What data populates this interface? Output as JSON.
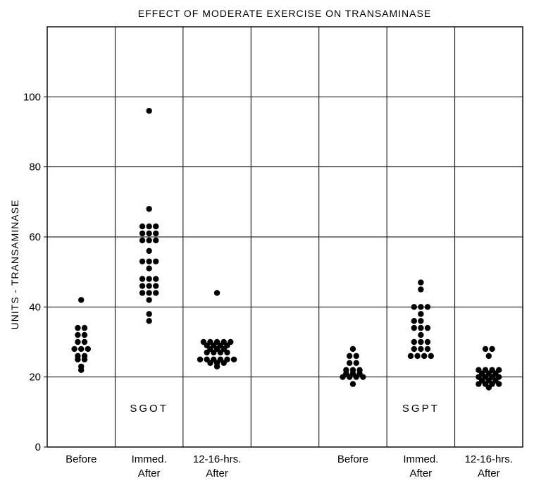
{
  "chart_data": {
    "type": "scatter",
    "title": "EFFECT OF MODERATE EXERCISE ON TRANSAMINASE",
    "ylabel": "UNITS - TRANSAMINASE",
    "xlabel": "",
    "ylim": [
      0,
      120
    ],
    "yticks": [
      0,
      20,
      40,
      60,
      80,
      100
    ],
    "grid": true,
    "groups": [
      "SGOT",
      "SGPT"
    ],
    "categories": [
      {
        "line1": "Before",
        "line2": ""
      },
      {
        "line1": "Immed.",
        "line2": "After"
      },
      {
        "line1": "12-16-hrs.",
        "line2": "After"
      },
      {
        "line1": "",
        "line2": ""
      },
      {
        "line1": "Before",
        "line2": ""
      },
      {
        "line1": "Immed.",
        "line2": "After"
      },
      {
        "line1": "12-16-hrs.",
        "line2": "After"
      }
    ],
    "series": [
      {
        "name": "SGOT Before",
        "column": 0,
        "points": [
          [
            0,
            42
          ],
          [
            -0.4,
            34
          ],
          [
            0.4,
            34
          ],
          [
            -0.4,
            32
          ],
          [
            0.4,
            32
          ],
          [
            -0.8,
            28
          ],
          [
            0,
            28
          ],
          [
            0.8,
            28
          ],
          [
            -0.4,
            30
          ],
          [
            0.4,
            30
          ],
          [
            -0.4,
            26
          ],
          [
            0.4,
            26
          ],
          [
            -0.4,
            25
          ],
          [
            0.4,
            25
          ],
          [
            0,
            23
          ],
          [
            0,
            22
          ]
        ]
      },
      {
        "name": "SGOT Immed. After",
        "column": 1,
        "points": [
          [
            0,
            96
          ],
          [
            0,
            68
          ],
          [
            -0.8,
            63
          ],
          [
            0,
            63
          ],
          [
            0.8,
            63
          ],
          [
            -0.8,
            61
          ],
          [
            0,
            61
          ],
          [
            0.8,
            61
          ],
          [
            -0.8,
            59
          ],
          [
            0,
            59
          ],
          [
            0.8,
            59
          ],
          [
            0,
            56
          ],
          [
            -0.8,
            53
          ],
          [
            0,
            53
          ],
          [
            0.8,
            53
          ],
          [
            0,
            51
          ],
          [
            -0.8,
            48
          ],
          [
            0,
            48
          ],
          [
            0.8,
            48
          ],
          [
            -0.8,
            46
          ],
          [
            0,
            46
          ],
          [
            0.8,
            46
          ],
          [
            -0.8,
            44
          ],
          [
            0,
            44
          ],
          [
            0.8,
            44
          ],
          [
            0,
            42
          ],
          [
            0,
            38
          ],
          [
            0,
            36
          ]
        ]
      },
      {
        "name": "SGOT 12-16-hrs. After",
        "column": 2,
        "points": [
          [
            0,
            44
          ],
          [
            -1.6,
            30
          ],
          [
            -0.8,
            30
          ],
          [
            0,
            30
          ],
          [
            0.8,
            30
          ],
          [
            1.6,
            30
          ],
          [
            -1.2,
            29
          ],
          [
            -0.4,
            29
          ],
          [
            0.4,
            29
          ],
          [
            1.2,
            29
          ],
          [
            -0.8,
            28
          ],
          [
            0,
            28
          ],
          [
            0.8,
            28
          ],
          [
            -1.2,
            27
          ],
          [
            -0.4,
            27
          ],
          [
            0.4,
            27
          ],
          [
            1.2,
            27
          ],
          [
            -2.0,
            25
          ],
          [
            -1.2,
            25
          ],
          [
            -0.4,
            25
          ],
          [
            0.4,
            25
          ],
          [
            1.2,
            25
          ],
          [
            2.0,
            25
          ],
          [
            -0.8,
            24
          ],
          [
            0,
            24
          ],
          [
            0.8,
            24
          ],
          [
            0,
            23
          ]
        ]
      },
      {
        "name": "SGPT Before",
        "column": 4,
        "points": [
          [
            0,
            28
          ],
          [
            -0.4,
            26
          ],
          [
            0.4,
            26
          ],
          [
            -0.4,
            24
          ],
          [
            0.4,
            24
          ],
          [
            -0.8,
            22
          ],
          [
            0,
            22
          ],
          [
            0.8,
            22
          ],
          [
            -1.2,
            20
          ],
          [
            -0.4,
            20
          ],
          [
            0.4,
            20
          ],
          [
            1.2,
            20
          ],
          [
            -0.8,
            21
          ],
          [
            0,
            21
          ],
          [
            0.8,
            21
          ],
          [
            0,
            18
          ]
        ]
      },
      {
        "name": "SGPT Immed. After",
        "column": 5,
        "points": [
          [
            0,
            47
          ],
          [
            0,
            45
          ],
          [
            -0.8,
            40
          ],
          [
            0,
            40
          ],
          [
            0.8,
            40
          ],
          [
            0,
            38
          ],
          [
            -0.8,
            36
          ],
          [
            0,
            36
          ],
          [
            -0.8,
            34
          ],
          [
            0,
            34
          ],
          [
            0.8,
            34
          ],
          [
            0,
            32
          ],
          [
            -0.8,
            30
          ],
          [
            0,
            30
          ],
          [
            0.8,
            30
          ],
          [
            -0.8,
            28
          ],
          [
            0,
            28
          ],
          [
            0.8,
            28
          ],
          [
            -1.2,
            26
          ],
          [
            -0.4,
            26
          ],
          [
            0.4,
            26
          ],
          [
            1.2,
            26
          ]
        ]
      },
      {
        "name": "SGPT 12-16-hrs. After",
        "column": 6,
        "points": [
          [
            -0.4,
            28
          ],
          [
            0.4,
            28
          ],
          [
            0,
            26
          ],
          [
            -1.2,
            22
          ],
          [
            -0.4,
            22
          ],
          [
            0.4,
            22
          ],
          [
            1.2,
            22
          ],
          [
            -0.8,
            21
          ],
          [
            0,
            21
          ],
          [
            0.8,
            21
          ],
          [
            -1.2,
            20
          ],
          [
            -0.4,
            20
          ],
          [
            0.4,
            20
          ],
          [
            1.2,
            20
          ],
          [
            -0.8,
            19
          ],
          [
            0,
            19
          ],
          [
            0.8,
            19
          ],
          [
            -1.2,
            18
          ],
          [
            -0.4,
            18
          ],
          [
            0.4,
            18
          ],
          [
            1.2,
            18
          ],
          [
            0,
            17
          ]
        ]
      }
    ]
  }
}
